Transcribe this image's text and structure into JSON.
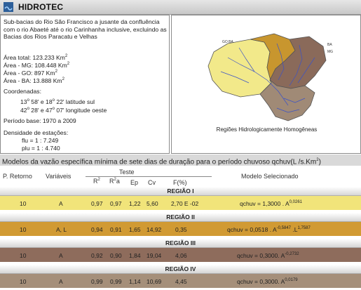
{
  "brand": "HIDROTEC",
  "info": {
    "description": "Sub-bacias do Rio São Francisco a jusante da confluência com o rio Abaeté até o rio Carinhanha inclusive, excluindo as Bacias dos Rios Paracatu e Velhas",
    "area_total": "Área total: 123.233 Km",
    "area_mg": "Área - MG: 108.448 Km",
    "area_go": "Área - GO: 897 Km",
    "area_ba": "Área - BA: 13.888 Km",
    "area_exp": "2",
    "coords_label": "Coordenadas:",
    "lat_a": "13",
    "lat_a_min": " 58' e 18",
    "lat_b_min": " 22'  latitude sul",
    "lon_a": "42",
    "lon_a_min": " 28' e 47",
    "lon_b_min": " 07'  longitude oeste",
    "deg": "o",
    "periodo": "Período base:  1970  a  2009",
    "densidade": "Densidade de estações:",
    "flu": "flu = 1 : 7.249",
    "plu": "plu = 1 : 4.740"
  },
  "map": {
    "caption": "Regiões Hidrologicamente Homogêneas",
    "label_go_ba": "GO  BA",
    "label_ba": "BA",
    "label_mg": "MG",
    "region_colors": [
      "#f2e98a",
      "#c8962e",
      "#8a6a5a",
      "#a08a76"
    ]
  },
  "table": {
    "title": "Modelos da vazão específica mínima de sete dias de duração para o período chuvoso qchuv(L /s.Km",
    "title_exp": "2",
    "title_end": ")",
    "col_periodo": "P. Retorno",
    "col_variaveis": "Variáveis",
    "col_teste": "Teste",
    "col_modelo": "Modelo Selecionado",
    "sub_r2": "R",
    "sub_r2a": "R",
    "sub_r2a_sub": "a",
    "sup_2": "2",
    "sub_ep": "Ep",
    "sub_cv": "Cv",
    "sub_f": "F(%)",
    "regions": [
      {
        "band": "REGIÃO I",
        "color": "#f1e47a",
        "row": {
          "p": "10",
          "var": "A",
          "r2": "0,97",
          "r2a": "0,97",
          "ep": "1,22",
          "cv": "5,60",
          "f": "2,70 E -02",
          "model": "qchuv  = 1,3000 . A",
          "exp": "0,0261"
        }
      },
      {
        "band": "REGIÃO II",
        "color": "#d19a33",
        "row": {
          "p": "10",
          "var": "A, L",
          "r2": "0,94",
          "r2a": "0,91",
          "ep": "1,65",
          "cv": "14,92",
          "f": "0,35",
          "model": "qchuv  =  0,0518 . A",
          "exp": "-0,5847",
          "model2": " .L",
          "exp2": "1,7587"
        }
      },
      {
        "band": "REGIÃO III",
        "color": "#8e6c5c",
        "row": {
          "p": "10",
          "var": "A",
          "r2": "0,92",
          "r2a": "0,90",
          "ep": "1,84",
          "cv": "19,04",
          "f": "4,06",
          "model": "qchuv = 0,3000. A",
          "exp": "-0,2732"
        }
      },
      {
        "band": "REGIÃO IV",
        "color": "#a58f7a",
        "row": {
          "p": "10",
          "var": "A",
          "r2": "0,99",
          "r2a": "0,99",
          "ep": "1,14",
          "cv": "10,69",
          "f": "4,45",
          "model": "qchuv = 0,3000. A",
          "exp": "0,0179"
        }
      }
    ]
  }
}
